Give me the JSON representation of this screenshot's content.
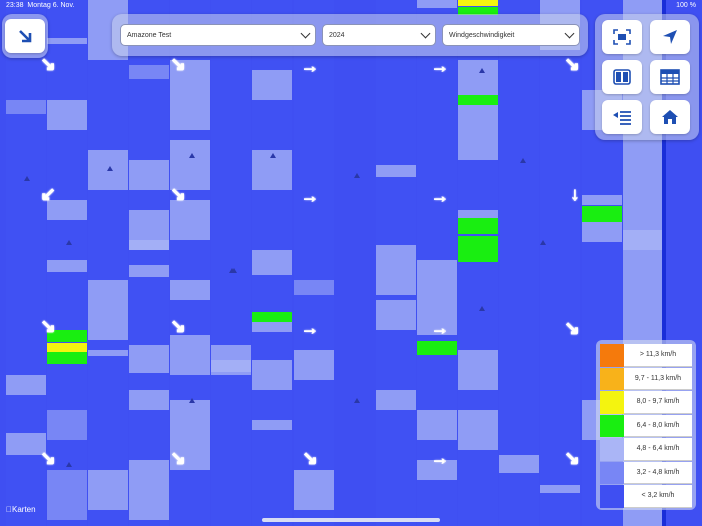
{
  "status_bar": {
    "time": "23:38",
    "date": "Montag 6. Nov.",
    "battery": "100 %"
  },
  "toolbar": {
    "field_select": "Amazone Test",
    "year_select": "2024",
    "metric_select": "Windgeschwindigkeit"
  },
  "buttons": {
    "back": "arrow-down-right-icon",
    "fullscreen": "fullscreen-icon",
    "location": "location-arrow-icon",
    "split_view": "split-view-icon",
    "table": "table-icon",
    "list": "list-icon",
    "home": "home-icon"
  },
  "legend": [
    {
      "label": "> 11,3 km/h",
      "color": "#f57a0c"
    },
    {
      "label": "9,7 - 11,3 km/h",
      "color": "#f8b21a"
    },
    {
      "label": "8,0 - 9,7 km/h",
      "color": "#f4f40f"
    },
    {
      "label": "6,4 - 8,0 km/h",
      "color": "#19ee11"
    },
    {
      "label": "4,8 - 6,4 km/h",
      "color": "#aab5f6"
    },
    {
      "label": "3,2 - 4,8 km/h",
      "color": "#7886f5"
    },
    {
      "label": "< 3,2 km/h",
      "color": "#3f4ff2"
    }
  ],
  "attribution": "Karten"
}
